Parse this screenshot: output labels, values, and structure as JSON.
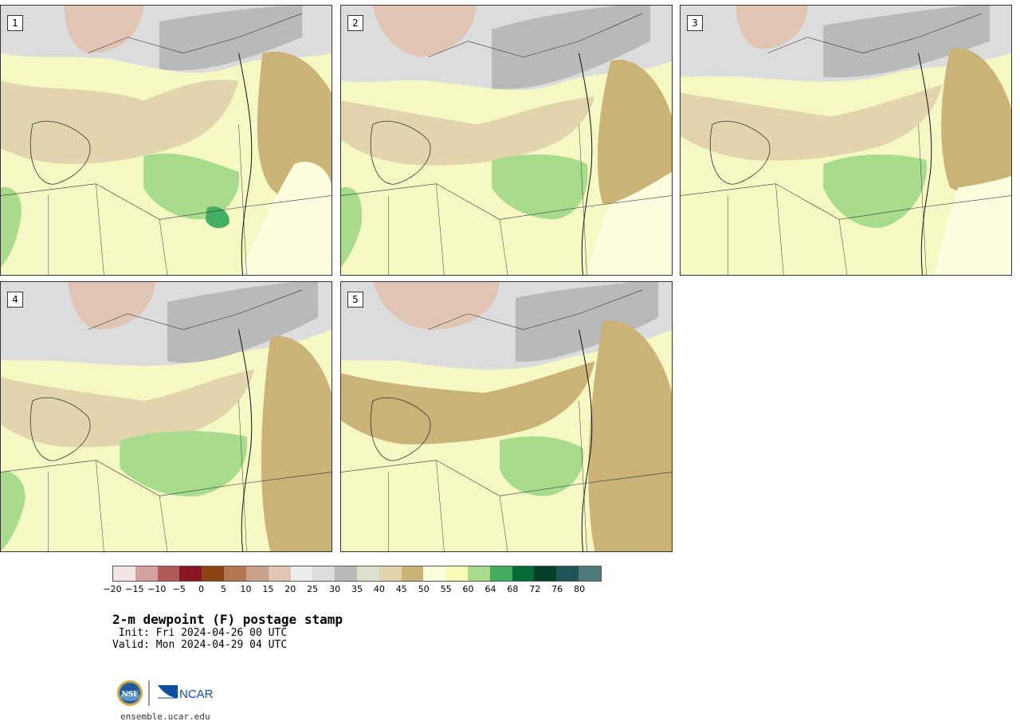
{
  "panels": [
    {
      "label": "1"
    },
    {
      "label": "2"
    },
    {
      "label": "3"
    },
    {
      "label": "4"
    },
    {
      "label": "5"
    }
  ],
  "colorbar": {
    "colors": [
      "#f3e4e4",
      "#d4a1a1",
      "#b05a5a",
      "#8b1520",
      "#8b4513",
      "#b07850",
      "#c9a088",
      "#e0c4b4",
      "#ececec",
      "#dcdcdc",
      "#b9b9b9",
      "#dfdfd0",
      "#e2d4ad",
      "#cbb277",
      "#fdfde0",
      "#f5fbb5",
      "#a8dc8c",
      "#45ad62",
      "#026b36",
      "#02402a",
      "#1f5458",
      "#4d7b7e"
    ],
    "ticks": [
      "−20",
      "−15",
      "−10",
      "−5",
      "0",
      "5",
      "10",
      "15",
      "20",
      "25",
      "30",
      "35",
      "40",
      "45",
      "50",
      "55",
      "60",
      "64",
      "68",
      "72",
      "76",
      "80"
    ]
  },
  "title": "2-m dewpoint (F) postage stamp",
  "init": " Init: Fri 2024-04-26 00 UTC",
  "valid": "Valid: Mon 2024-04-29 04 UTC",
  "logo": {
    "nsf_text": "NSF",
    "ncar_text": "NCAR"
  },
  "url": "ensemble.ucar.edu"
}
